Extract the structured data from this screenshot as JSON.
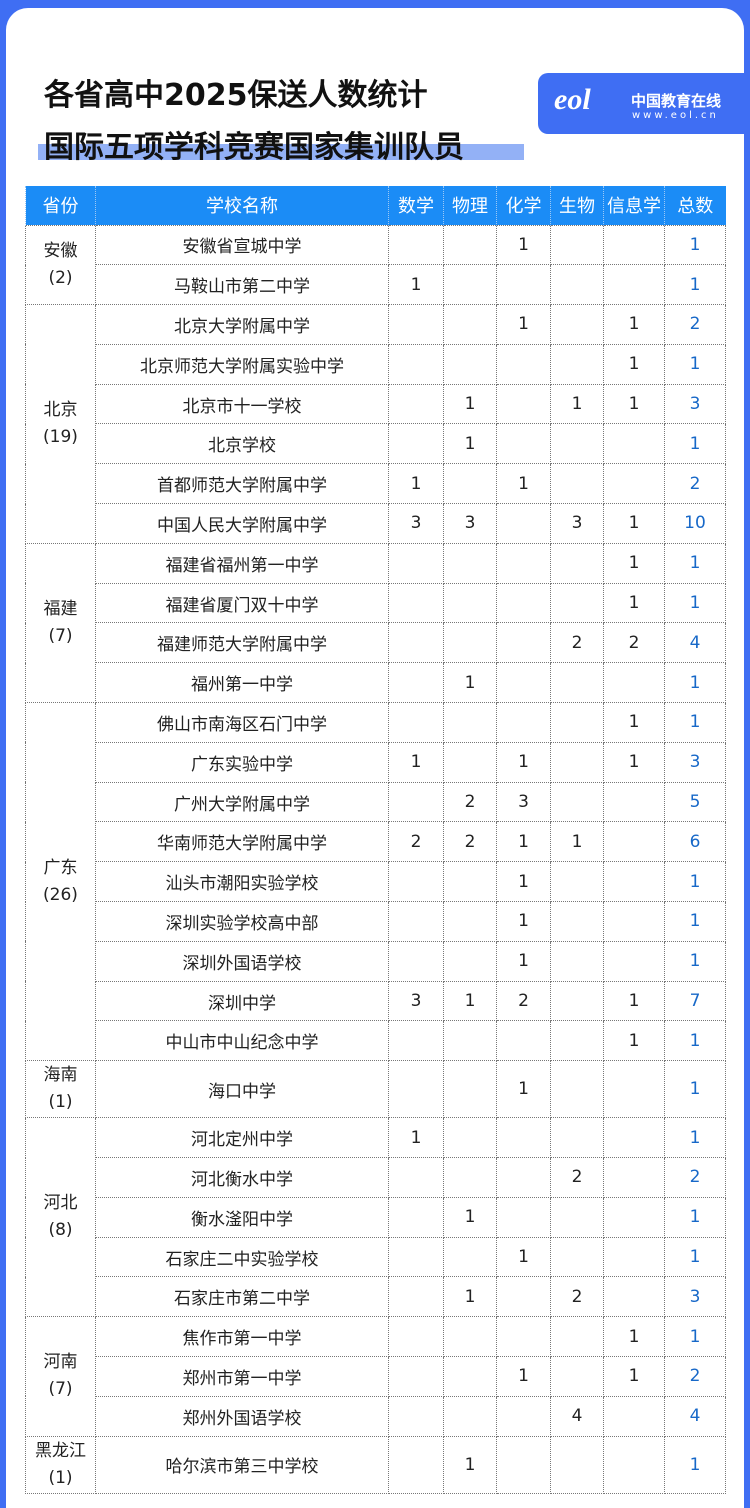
{
  "title": {
    "line1": "各省高中2025保送人数统计",
    "line2": "国际五项学科竞赛国家集训队员"
  },
  "logo": {
    "mark": "eol",
    "name": "中国教育在线",
    "url": "www.eol.cn"
  },
  "colors": {
    "frame": "#3f6ef3",
    "header": "#1b8cf6",
    "total": "#1768c8",
    "highlight": "#93b1f6"
  },
  "table": {
    "headers": [
      "省份",
      "学校名称",
      "数学",
      "物理",
      "化学",
      "生物",
      "信息学",
      "总数"
    ],
    "provinces": [
      {
        "name": "安徽",
        "count": "(2)",
        "schools": [
          [
            "安徽省宣城中学",
            "",
            "",
            "1",
            "",
            "",
            "1"
          ],
          [
            "马鞍山市第二中学",
            "1",
            "",
            "",
            "",
            "",
            "1"
          ]
        ]
      },
      {
        "name": "北京",
        "count": "(19)",
        "schools": [
          [
            "北京大学附属中学",
            "",
            "",
            "1",
            "",
            "1",
            "2"
          ],
          [
            "北京师范大学附属实验中学",
            "",
            "",
            "",
            "",
            "1",
            "1"
          ],
          [
            "北京市十一学校",
            "",
            "1",
            "",
            "1",
            "1",
            "3"
          ],
          [
            "北京学校",
            "",
            "1",
            "",
            "",
            "",
            "1"
          ],
          [
            "首都师范大学附属中学",
            "1",
            "",
            "1",
            "",
            "",
            "2"
          ],
          [
            "中国人民大学附属中学",
            "3",
            "3",
            "",
            "3",
            "1",
            "10"
          ]
        ]
      },
      {
        "name": "福建",
        "count": "(7)",
        "schools": [
          [
            "福建省福州第一中学",
            "",
            "",
            "",
            "",
            "1",
            "1"
          ],
          [
            "福建省厦门双十中学",
            "",
            "",
            "",
            "",
            "1",
            "1"
          ],
          [
            "福建师范大学附属中学",
            "",
            "",
            "",
            "2",
            "2",
            "4"
          ],
          [
            "福州第一中学",
            "",
            "1",
            "",
            "",
            "",
            "1"
          ]
        ]
      },
      {
        "name": "广东",
        "count": "(26)",
        "schools": [
          [
            "佛山市南海区石门中学",
            "",
            "",
            "",
            "",
            "1",
            "1"
          ],
          [
            "广东实验中学",
            "1",
            "",
            "1",
            "",
            "1",
            "3"
          ],
          [
            "广州大学附属中学",
            "",
            "2",
            "3",
            "",
            "",
            "5"
          ],
          [
            "华南师范大学附属中学",
            "2",
            "2",
            "1",
            "1",
            "",
            "6"
          ],
          [
            "汕头市潮阳实验学校",
            "",
            "",
            "1",
            "",
            "",
            "1"
          ],
          [
            "深圳实验学校高中部",
            "",
            "",
            "1",
            "",
            "",
            "1"
          ],
          [
            "深圳外国语学校",
            "",
            "",
            "1",
            "",
            "",
            "1"
          ],
          [
            "深圳中学",
            "3",
            "1",
            "2",
            "",
            "1",
            "7"
          ],
          [
            "中山市中山纪念中学",
            "",
            "",
            "",
            "",
            "1",
            "1"
          ]
        ]
      },
      {
        "name": "海南",
        "count": "(1)",
        "schools": [
          [
            "海口中学",
            "",
            "",
            "1",
            "",
            "",
            "1"
          ]
        ]
      },
      {
        "name": "河北",
        "count": "(8)",
        "schools": [
          [
            "河北定州中学",
            "1",
            "",
            "",
            "",
            "",
            "1"
          ],
          [
            "河北衡水中学",
            "",
            "",
            "",
            "2",
            "",
            "2"
          ],
          [
            "衡水滏阳中学",
            "",
            "1",
            "",
            "",
            "",
            "1"
          ],
          [
            "石家庄二中实验学校",
            "",
            "",
            "1",
            "",
            "",
            "1"
          ],
          [
            "石家庄市第二中学",
            "",
            "1",
            "",
            "2",
            "",
            "3"
          ]
        ]
      },
      {
        "name": "河南",
        "count": "(7)",
        "schools": [
          [
            "焦作市第一中学",
            "",
            "",
            "",
            "",
            "1",
            "1"
          ],
          [
            "郑州市第一中学",
            "",
            "",
            "1",
            "",
            "1",
            "2"
          ],
          [
            "郑州外国语学校",
            "",
            "",
            "",
            "4",
            "",
            "4"
          ]
        ]
      },
      {
        "name": "黑龙江",
        "count": "(1)",
        "schools": [
          [
            "哈尔滨市第三中学校",
            "",
            "1",
            "",
            "",
            "",
            "1"
          ]
        ]
      }
    ]
  }
}
